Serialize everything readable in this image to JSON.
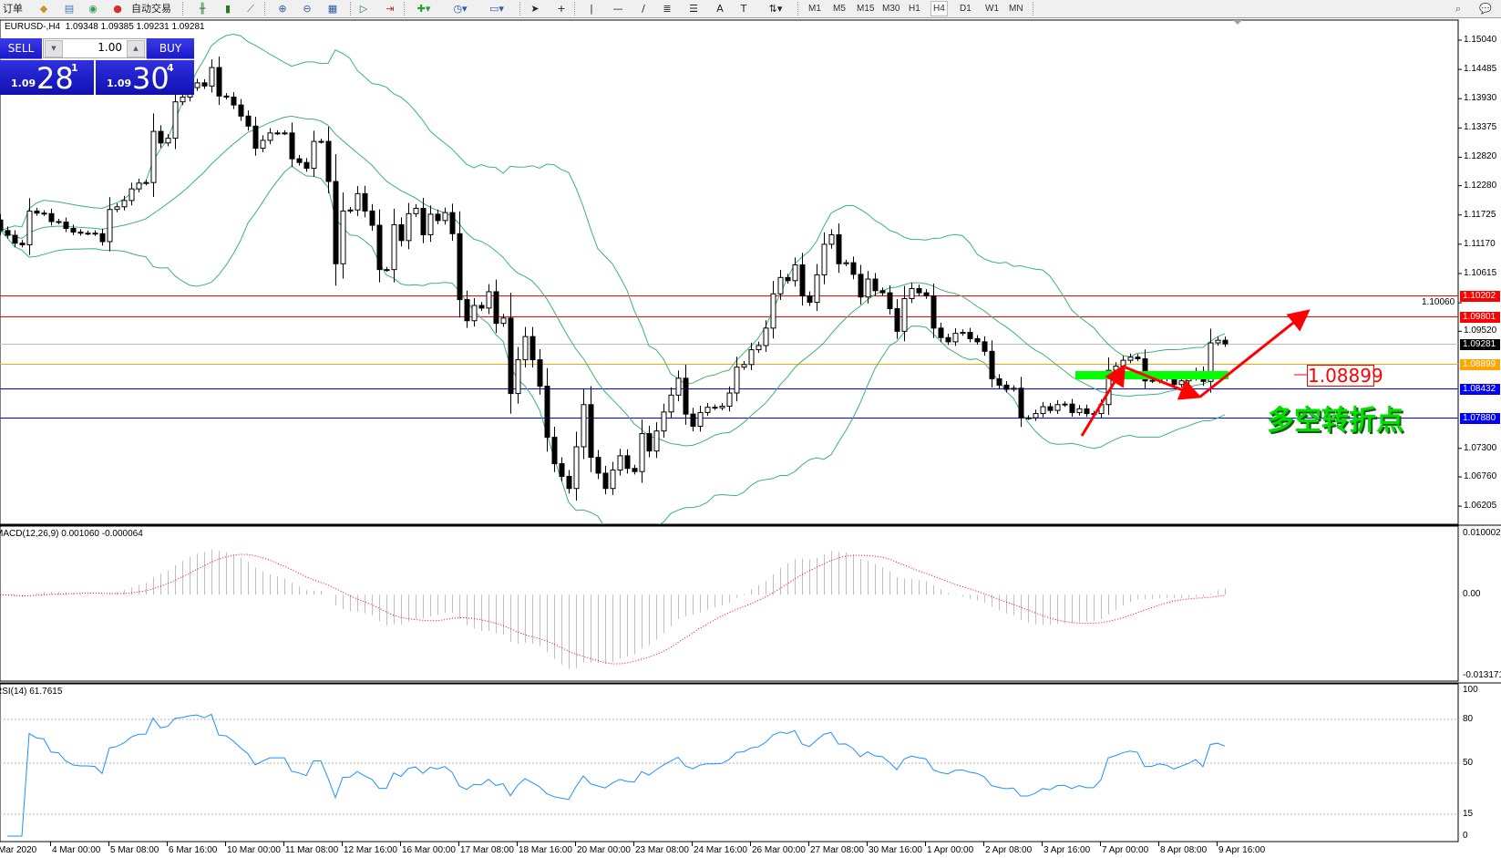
{
  "toolbar": {
    "new_order_label": "订单",
    "autotrade_label": "自动交易",
    "timeframes": [
      "M1",
      "M5",
      "M15",
      "M30",
      "H1",
      "H4",
      "D1",
      "W1",
      "MN"
    ],
    "active_timeframe": "H4"
  },
  "chart_header": {
    "symbol": "EURUSD-,H4",
    "ohlc": "1.09348 1.09385 1.09231 1.09281"
  },
  "one_click": {
    "sell_label": "SELL",
    "buy_label": "BUY",
    "volume": "1.00",
    "sell_prefix": "1.09",
    "sell_big": "28",
    "sell_pip": "1",
    "buy_prefix": "1.09",
    "buy_big": "30",
    "buy_pip": "4"
  },
  "price_axis": {
    "labels": [
      "1.15040",
      "1.14485",
      "1.13930",
      "1.13375",
      "1.12820",
      "1.12280",
      "1.11725",
      "1.11170",
      "1.10615",
      "1.10060",
      "1.09520",
      "1.07300",
      "1.06760",
      "1.06205"
    ]
  },
  "price_lines": [
    {
      "price": "1.10202",
      "color": "#ff0000",
      "tag_text_color": "#ffffff"
    },
    {
      "price": "1.09801",
      "color": "#ff0000",
      "tag_text_color": "#ffffff"
    },
    {
      "price": "1.09281",
      "color": "#c0c0c0",
      "tag_color": "#000000",
      "tag_text_color": "#ffffff"
    },
    {
      "price": "1.08899",
      "color": "#ffa500",
      "tag_text_color": "#ffffff"
    },
    {
      "price": "1.08432",
      "color": "#0000ff",
      "tag_text_color": "#ffffff"
    },
    {
      "price": "1.07880",
      "color": "#0000ff",
      "tag_text_color": "#ffffff"
    }
  ],
  "annotations": {
    "level_label": "1.08899",
    "text": "多空转折点",
    "arrow_color": "#ff0000",
    "zone_color": "#00ff00"
  },
  "indicators": {
    "macd": {
      "label": "MACD(12,26,9) 0.001060 -0.000064",
      "axis": [
        "0.010002",
        "0.00",
        "-0.013171"
      ],
      "histogram_color": "#c0c0c0",
      "signal_color": "#ff0000"
    },
    "rsi": {
      "label": "RSI(14) 61.7615",
      "axis": [
        "100",
        "80",
        "50",
        "15",
        "0"
      ],
      "levels": [
        80,
        50,
        15
      ],
      "color": "#1e90ff"
    }
  },
  "time_axis": [
    "Mar 2020",
    "4 Mar 00:00",
    "5 Mar 08:00",
    "6 Mar 16:00",
    "10 Mar 00:00",
    "11 Mar 08:00",
    "12 Mar 16:00",
    "16 Mar 00:00",
    "17 Mar 08:00",
    "18 Mar 16:00",
    "20 Mar 00:00",
    "23 Mar 08:00",
    "24 Mar 16:00",
    "26 Mar 00:00",
    "27 Mar 08:00",
    "30 Mar 16:00",
    "1 Apr 00:00",
    "2 Apr 08:00",
    "3 Apr 16:00",
    "7 Apr 00:00",
    "8 Apr 08:00",
    "9 Apr 16:00"
  ],
  "chart_data": {
    "type": "candlestick",
    "symbol": "EURUSD-,H4",
    "ylim": [
      1.0586,
      1.1542
    ],
    "first_open": 1.1163,
    "closes": [
      1.1143,
      1.1134,
      1.1119,
      1.1116,
      1.118,
      1.1176,
      1.1175,
      1.116,
      1.1159,
      1.1147,
      1.114,
      1.1138,
      1.1138,
      1.1137,
      1.1122,
      1.1183,
      1.1188,
      1.12,
      1.1222,
      1.1233,
      1.1234,
      1.1331,
      1.1309,
      1.1318,
      1.1387,
      1.1396,
      1.1414,
      1.1423,
      1.1417,
      1.1452,
      1.1398,
      1.1396,
      1.1381,
      1.136,
      1.1341,
      1.1299,
      1.1314,
      1.1328,
      1.1328,
      1.1328,
      1.1279,
      1.1272,
      1.1261,
      1.1312,
      1.1312,
      1.1236,
      1.108,
      1.118,
      1.1182,
      1.1213,
      1.118,
      1.1153,
      1.1069,
      1.1069,
      1.1154,
      1.1124,
      1.1175,
      1.1185,
      1.1135,
      1.1174,
      1.1162,
      1.1177,
      1.1137,
      1.1012,
      1.0972,
      1.1001,
      1.0996,
      1.1027,
      1.0967,
      1.0977,
      1.0834,
      1.0898,
      1.0942,
      1.0898,
      1.0848,
      1.0751,
      1.0701,
      1.0677,
      1.0654,
      1.0733,
      1.0813,
      1.0713,
      1.0683,
      1.0654,
      1.0689,
      1.0716,
      1.0692,
      1.0686,
      1.0758,
      1.0725,
      1.0763,
      1.0799,
      1.0831,
      1.0863,
      1.0795,
      1.0772,
      1.0798,
      1.0808,
      1.0807,
      1.081,
      1.0835,
      1.0884,
      1.0889,
      1.0917,
      1.0925,
      1.0958,
      1.1023,
      1.1054,
      1.1048,
      1.1078,
      1.1019,
      1.1007,
      1.1059,
      1.1117,
      1.1135,
      1.108,
      1.1082,
      1.106,
      1.1017,
      1.1051,
      1.1029,
      1.1025,
      1.0995,
      1.0952,
      1.1014,
      1.1033,
      1.1025,
      1.1019,
      1.0958,
      1.094,
      1.0932,
      1.0948,
      1.095,
      1.0938,
      1.0932,
      1.0914,
      1.0862,
      1.085,
      1.0842,
      1.0844,
      1.0788,
      1.0788,
      1.0796,
      1.0809,
      1.0802,
      1.0813,
      1.0814,
      1.0798,
      1.0805,
      1.0796,
      1.0796,
      1.0813,
      1.0878,
      1.0886,
      1.0897,
      1.0903,
      1.09,
      1.0858,
      1.0859,
      1.0866,
      1.0862,
      1.0851,
      1.0858,
      1.0865,
      1.0875,
      1.0857,
      1.093,
      1.0935,
      1.09281
    ],
    "bollinger": {
      "period": 20,
      "deviation": 2,
      "color": "#3cb371"
    },
    "bull_color": "#ffffff",
    "bear_color": "#000000"
  }
}
